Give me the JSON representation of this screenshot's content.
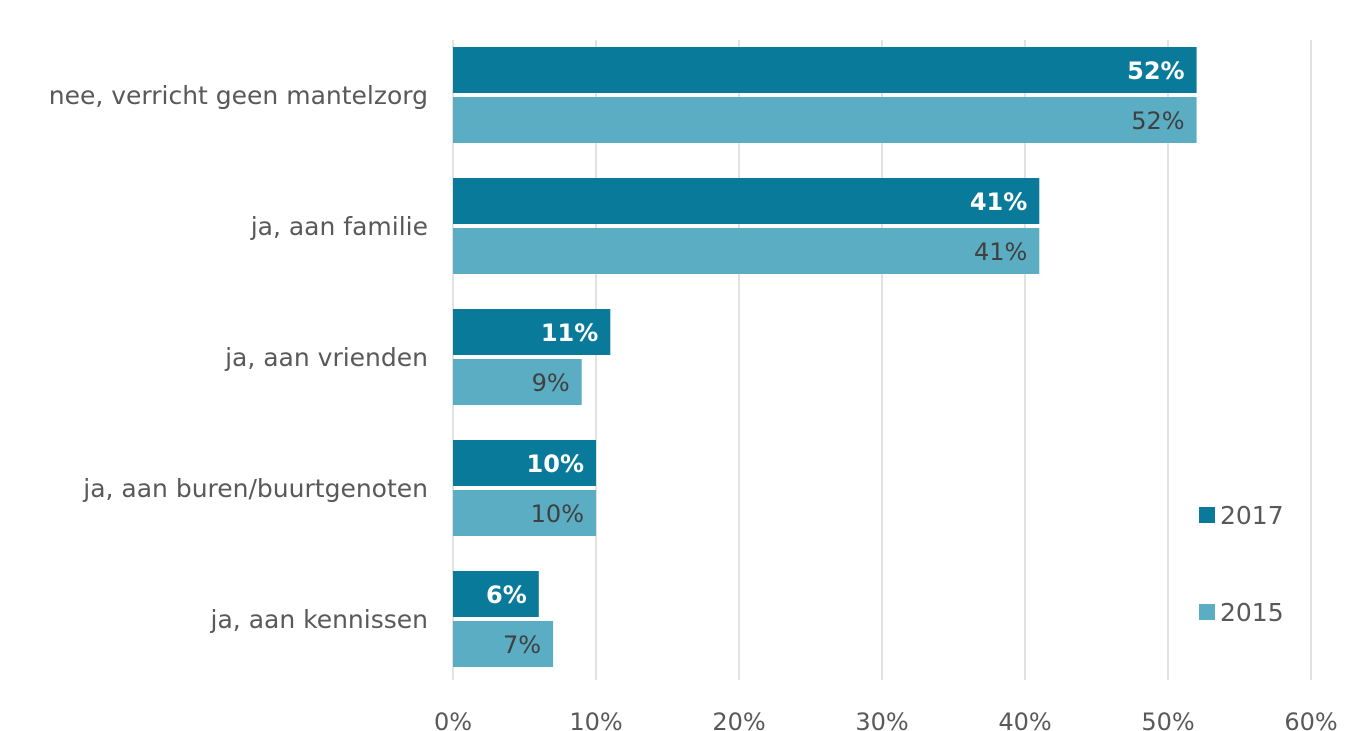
{
  "chart_data": {
    "type": "bar",
    "orientation": "horizontal",
    "categories": [
      "nee, verricht geen mantelzorg",
      "ja, aan familie",
      "ja, aan vrienden",
      "ja, aan buren/buurtgenoten",
      "ja, aan kennissen"
    ],
    "series": [
      {
        "name": "2017",
        "values": [
          52,
          41,
          11,
          10,
          6
        ],
        "labels": [
          "52%",
          "41%",
          "11%",
          "10%",
          "6%"
        ],
        "color": "#0a7a9b"
      },
      {
        "name": "2015",
        "values": [
          52,
          41,
          9,
          10,
          7
        ],
        "labels": [
          "52%",
          "41%",
          "9%",
          "10%",
          "7%"
        ],
        "color": "#5aadc2"
      }
    ],
    "xlim": [
      0,
      60
    ],
    "x_ticks": [
      0,
      10,
      20,
      30,
      40,
      50,
      60
    ],
    "x_tick_labels": [
      "0%",
      "10%",
      "20%",
      "30%",
      "40%",
      "50%",
      "60%"
    ],
    "grid": "vertical",
    "legend": "right",
    "gridline_color": "#d9d9d9"
  }
}
